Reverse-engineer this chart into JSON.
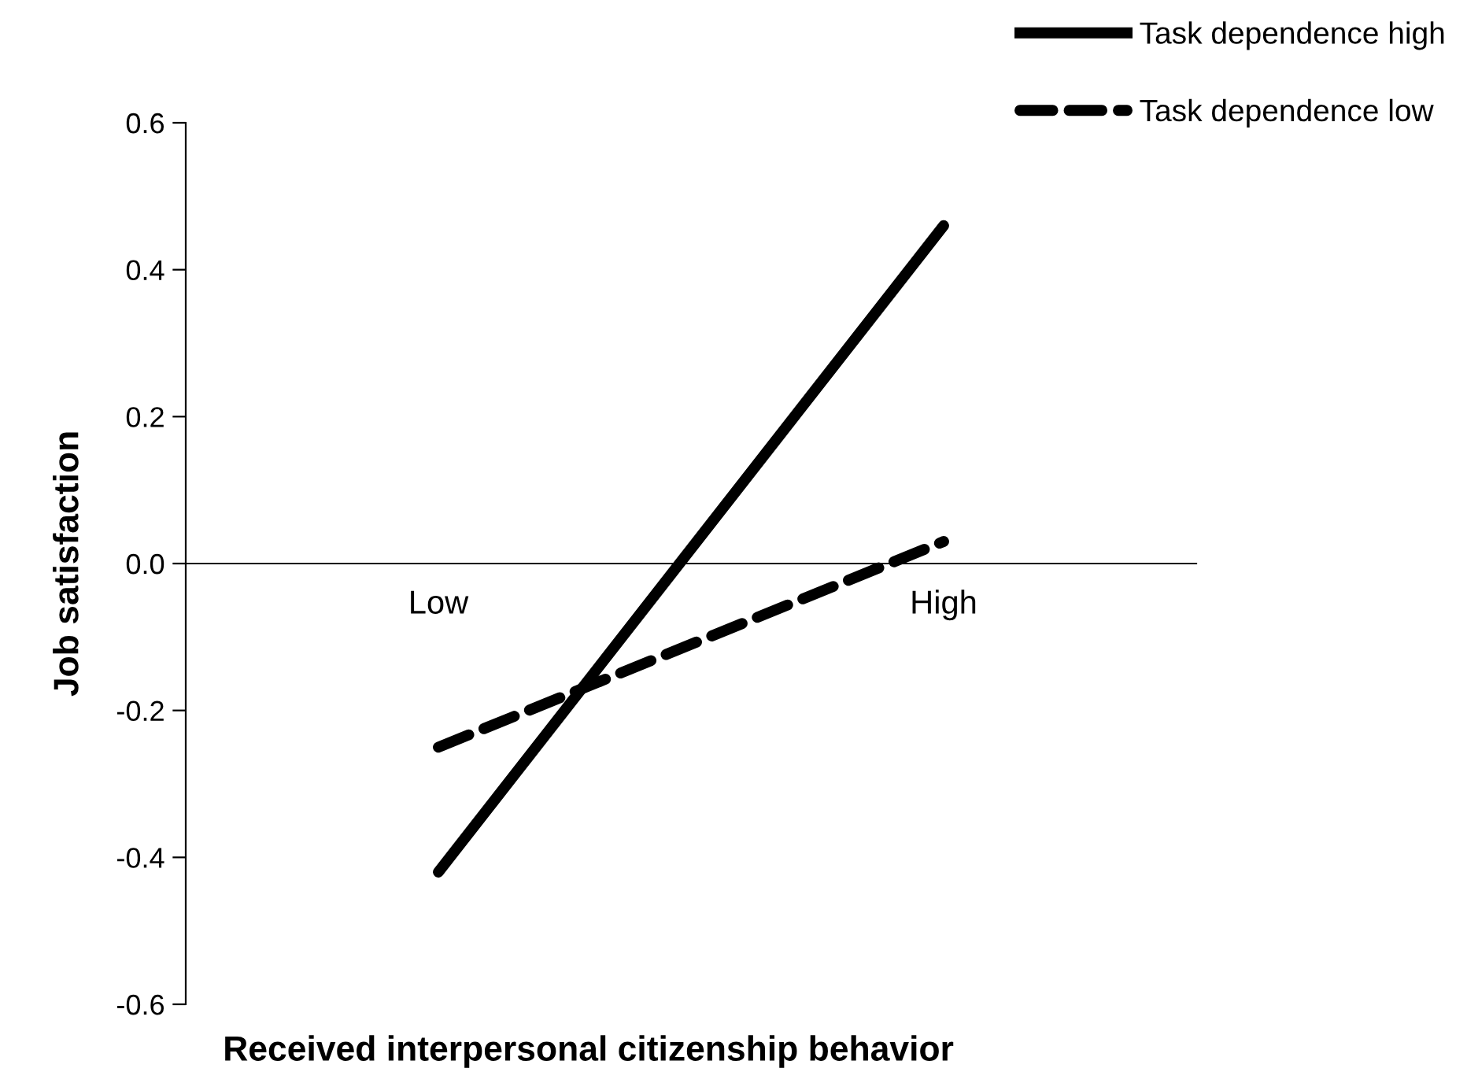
{
  "chart_data": {
    "type": "line",
    "xlabel": "Received interpersonal citizenship behavior",
    "ylabel": "Job satisfaction",
    "categories": [
      "Low",
      "High"
    ],
    "series": [
      {
        "name": "Task dependence high",
        "color": "#000000",
        "values": [
          -0.42,
          0.46
        ],
        "line_style": "solid"
      },
      {
        "name": "Task dependence low",
        "color": "#000000",
        "values": [
          -0.25,
          0.03
        ],
        "line_style": "dashed"
      }
    ],
    "ylim": [
      -0.6,
      0.6
    ],
    "yticks": [
      {
        "value": -0.6,
        "label": "-0.6"
      },
      {
        "value": -0.4,
        "label": "-0.4"
      },
      {
        "value": -0.2,
        "label": "-0.2"
      },
      {
        "value": 0,
        "label": "0.0"
      },
      {
        "value": 0.2,
        "label": "0.2"
      },
      {
        "value": 0.4,
        "label": "0.4"
      },
      {
        "value": 0.6,
        "label": "0.6"
      }
    ],
    "grid": false,
    "legend": "top right",
    "marker": "none"
  }
}
